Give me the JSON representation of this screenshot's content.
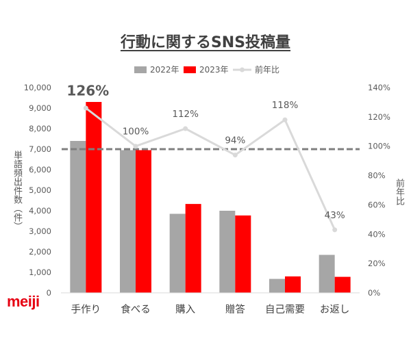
{
  "title": "行動に関するSNS投稿量",
  "logo": "meiji",
  "colors": {
    "logo": "#e60012",
    "title": "#404040"
  },
  "chart_data": {
    "type": "bar",
    "categories": [
      "手作り",
      "食べる",
      "購入",
      "贈答",
      "自己需要",
      "お返し"
    ],
    "series": [
      {
        "name": "2022年",
        "type": "bar",
        "y_axis": "primary",
        "color": "#a6a6a6",
        "values": [
          7400,
          6950,
          3850,
          4000,
          680,
          1850
        ]
      },
      {
        "name": "2023年",
        "type": "bar",
        "y_axis": "primary",
        "color": "#ff0000",
        "values": [
          9300,
          6950,
          4330,
          3770,
          800,
          780
        ]
      },
      {
        "name": "前年比",
        "type": "line",
        "y_axis": "secondary",
        "color": "#d9d9d9",
        "values": [
          126,
          100,
          112,
          94,
          118,
          43
        ],
        "labels": [
          "126%",
          "100%",
          "112%",
          "94%",
          "118%",
          "43%"
        ],
        "highlight_index": 0,
        "highlight_color": "#ff0000"
      }
    ],
    "ylabel": "単語頻出件数（件）",
    "y2label": "前年比",
    "ylim": [
      0,
      10000
    ],
    "yticks": [
      "0",
      "1,000",
      "2,000",
      "3,000",
      "4,000",
      "5,000",
      "6,000",
      "7,000",
      "8,000",
      "9,000",
      "10,000"
    ],
    "y2lim": [
      0,
      140
    ],
    "y2ticks": [
      "0%",
      "20%",
      "40%",
      "60%",
      "80%",
      "100%",
      "120%",
      "140%"
    ],
    "reference_line": {
      "value": 7000,
      "y_axis": "primary",
      "style": "dashed",
      "color": "#7f7f7f"
    },
    "legend_position": "top-center",
    "grid": false
  }
}
